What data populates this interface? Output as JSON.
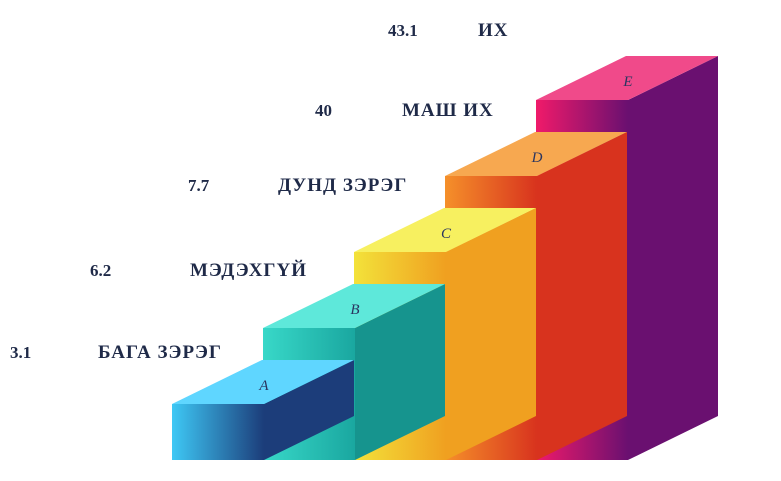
{
  "steps": [
    {
      "value": 3.1,
      "label": "БАГА ЗЭРЭГ",
      "letter": "A"
    },
    {
      "value": 6.2,
      "label": "МЭДЭХГҮЙ",
      "letter": "B"
    },
    {
      "value": 7.7,
      "label": "ДУНД ЗЭРЭГ",
      "letter": "C"
    },
    {
      "value": 40,
      "label": "МАШ ИХ",
      "letter": "D"
    },
    {
      "value": 43.1,
      "label": "ИХ",
      "letter": "E"
    }
  ]
}
